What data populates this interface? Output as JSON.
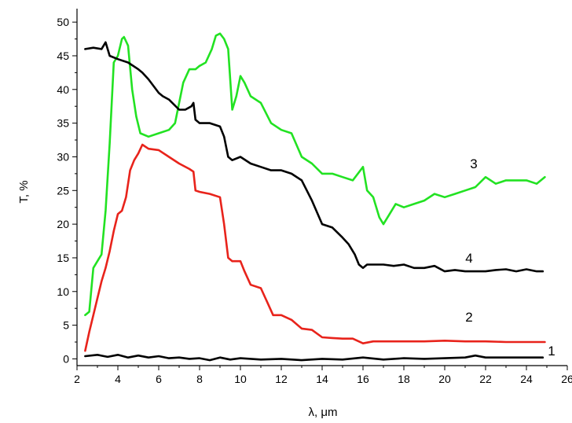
{
  "chart_data": {
    "type": "line",
    "xlabel": "λ, μm",
    "ylabel": "T, %",
    "xlim": [
      2,
      26
    ],
    "ylim": [
      -1,
      52
    ],
    "x_ticks": [
      2,
      4,
      6,
      8,
      10,
      12,
      14,
      16,
      18,
      20,
      22,
      24,
      26
    ],
    "y_ticks": [
      0,
      5,
      10,
      15,
      20,
      25,
      30,
      35,
      40,
      45,
      50
    ],
    "grid": false,
    "series": [
      {
        "name": "1",
        "color": "#000000",
        "x": [
          2.4,
          3.0,
          3.5,
          4.0,
          4.5,
          5.0,
          5.5,
          6.0,
          6.5,
          7.0,
          7.5,
          8.0,
          8.5,
          9.0,
          9.5,
          10.0,
          11.0,
          12.0,
          13.0,
          14.0,
          15.0,
          16.0,
          17.0,
          18.0,
          19.0,
          20.0,
          21.0,
          21.5,
          22.0,
          23.0,
          24.0,
          24.8
        ],
        "y": [
          0.4,
          0.6,
          0.3,
          0.6,
          0.2,
          0.5,
          0.2,
          0.4,
          0.1,
          0.2,
          0.0,
          0.1,
          -0.2,
          0.2,
          -0.1,
          0.1,
          -0.1,
          0.0,
          -0.2,
          0.0,
          -0.1,
          0.2,
          -0.1,
          0.1,
          0.0,
          0.1,
          0.2,
          0.5,
          0.2,
          0.2,
          0.2,
          0.2
        ]
      },
      {
        "name": "2",
        "color": "#e8231b",
        "x": [
          2.4,
          2.6,
          2.8,
          3.0,
          3.2,
          3.4,
          3.6,
          3.8,
          4.0,
          4.2,
          4.4,
          4.6,
          4.8,
          5.0,
          5.2,
          5.5,
          6.0,
          6.5,
          7.0,
          7.5,
          7.7,
          7.8,
          8.0,
          8.5,
          9.0,
          9.2,
          9.4,
          9.6,
          10.0,
          10.2,
          10.5,
          11.0,
          11.3,
          11.6,
          12.0,
          12.5,
          13.0,
          13.5,
          14.0,
          14.5,
          15.0,
          15.5,
          16.0,
          16.5,
          17.0,
          18.0,
          19.0,
          20.0,
          21.0,
          22.0,
          23.0,
          24.0,
          24.9
        ],
        "y": [
          1.2,
          4.0,
          6.5,
          9.0,
          11.5,
          13.5,
          16.0,
          19.0,
          21.5,
          22.0,
          24.0,
          28.0,
          29.5,
          30.5,
          31.8,
          31.2,
          31.0,
          30.0,
          29.0,
          28.2,
          27.8,
          25.0,
          24.8,
          24.5,
          24.0,
          20.0,
          15.0,
          14.5,
          14.5,
          13.0,
          11.0,
          10.5,
          8.5,
          6.5,
          6.5,
          5.8,
          4.5,
          4.3,
          3.2,
          3.1,
          3.0,
          3.0,
          2.3,
          2.6,
          2.6,
          2.6,
          2.6,
          2.7,
          2.6,
          2.6,
          2.5,
          2.5,
          2.5
        ]
      },
      {
        "name": "3",
        "color": "#22e222",
        "x": [
          2.4,
          2.6,
          2.8,
          3.0,
          3.2,
          3.4,
          3.6,
          3.8,
          4.0,
          4.2,
          4.3,
          4.5,
          4.7,
          4.9,
          5.1,
          5.5,
          6.0,
          6.5,
          6.8,
          7.0,
          7.2,
          7.5,
          7.8,
          8.0,
          8.3,
          8.6,
          8.8,
          9.0,
          9.2,
          9.4,
          9.6,
          9.8,
          10.0,
          10.2,
          10.5,
          11.0,
          11.5,
          12.0,
          12.5,
          13.0,
          13.5,
          14.0,
          14.5,
          15.0,
          15.5,
          16.0,
          16.2,
          16.5,
          16.8,
          17.0,
          17.3,
          17.6,
          18.0,
          18.5,
          19.0,
          19.5,
          20.0,
          20.5,
          21.0,
          21.5,
          22.0,
          22.5,
          23.0,
          23.5,
          24.0,
          24.5,
          24.9
        ],
        "y": [
          6.5,
          7.0,
          13.5,
          14.5,
          15.5,
          22.0,
          32.0,
          44.0,
          45.0,
          47.5,
          47.8,
          46.5,
          40.0,
          36.0,
          33.5,
          33.0,
          33.5,
          34.0,
          35.0,
          38.0,
          41.0,
          43.0,
          43.0,
          43.5,
          44.0,
          46.0,
          48.0,
          48.3,
          47.5,
          46.0,
          37.0,
          39.0,
          42.0,
          41.0,
          39.0,
          38.0,
          35.0,
          34.0,
          33.5,
          30.0,
          29.0,
          27.5,
          27.5,
          27.0,
          26.5,
          28.5,
          25.0,
          24.0,
          21.0,
          20.0,
          21.5,
          23.0,
          22.5,
          23.0,
          23.5,
          24.5,
          24.0,
          24.5,
          25.0,
          25.5,
          27.0,
          26.0,
          26.5,
          26.5,
          26.5,
          26.0,
          27.0
        ]
      },
      {
        "name": "4",
        "color": "#000000",
        "x": [
          2.4,
          2.8,
          3.2,
          3.4,
          3.6,
          4.0,
          4.5,
          5.0,
          5.2,
          5.5,
          6.0,
          6.2,
          6.5,
          7.0,
          7.3,
          7.6,
          7.7,
          7.8,
          8.0,
          8.5,
          9.0,
          9.2,
          9.4,
          9.6,
          10.0,
          10.5,
          11.0,
          11.5,
          12.0,
          12.5,
          13.0,
          13.5,
          14.0,
          14.5,
          15.0,
          15.3,
          15.6,
          15.8,
          16.0,
          16.2,
          16.5,
          17.0,
          17.5,
          18.0,
          18.5,
          19.0,
          19.5,
          20.0,
          20.5,
          21.0,
          21.5,
          22.0,
          22.5,
          23.0,
          23.5,
          24.0,
          24.5,
          24.8
        ],
        "y": [
          46.0,
          46.2,
          46.0,
          47.0,
          45.0,
          44.5,
          44.0,
          43.0,
          42.5,
          41.5,
          39.5,
          39.0,
          38.5,
          37.0,
          37.0,
          37.5,
          38.0,
          35.5,
          35.0,
          35.0,
          34.5,
          33.0,
          30.0,
          29.5,
          30.0,
          29.0,
          28.5,
          28.0,
          28.0,
          27.5,
          26.5,
          23.5,
          20.0,
          19.5,
          18.0,
          17.0,
          15.5,
          14.0,
          13.5,
          14.0,
          14.0,
          14.0,
          13.8,
          14.0,
          13.5,
          13.5,
          13.8,
          13.0,
          13.2,
          13.0,
          13.0,
          13.0,
          13.2,
          13.3,
          13.0,
          13.3,
          13.0,
          13.0
        ]
      }
    ]
  }
}
